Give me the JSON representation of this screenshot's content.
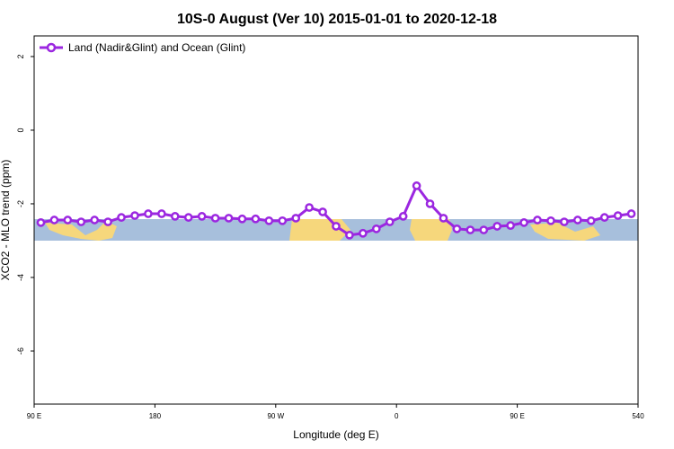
{
  "chart_data": {
    "type": "line",
    "title": "10S-0 August (Ver 10)   2015-01-01 to 2020-12-18",
    "x_label": "Longitude (deg E)",
    "y_label": "XCO2 - MLO trend (ppm)",
    "x": [
      95,
      105,
      115,
      125,
      135,
      145,
      155,
      165,
      175,
      185,
      195,
      205,
      215,
      225,
      235,
      245,
      255,
      265,
      275,
      285,
      295,
      305,
      315,
      325,
      335,
      345,
      355,
      365,
      375,
      385,
      395,
      405,
      415,
      425,
      435,
      445,
      455,
      465,
      475,
      485,
      495,
      505,
      515,
      525,
      535
    ],
    "series": [
      {
        "name": "Land (Nadir&Glint) and Ocean (Glint)",
        "color": "#9b27e0",
        "values": [
          -2.51,
          -2.44,
          -2.44,
          -2.49,
          -2.44,
          -2.49,
          -2.37,
          -2.32,
          -2.27,
          -2.27,
          -2.34,
          -2.37,
          -2.34,
          -2.39,
          -2.39,
          -2.41,
          -2.41,
          -2.46,
          -2.46,
          -2.39,
          -2.1,
          -2.22,
          -2.61,
          -2.85,
          -2.8,
          -2.68,
          -2.49,
          -2.34,
          -1.51,
          -2.0,
          -2.39,
          -2.68,
          -2.71,
          -2.71,
          -2.61,
          -2.59,
          -2.51,
          -2.44,
          -2.46,
          -2.49,
          -2.44,
          -2.46,
          -2.37,
          -2.32,
          -2.27
        ]
      }
    ],
    "xlim": [
      90,
      540
    ],
    "xticks": [
      {
        "value": 90,
        "label": "90 E"
      },
      180,
      {
        "value": 270,
        "label": "90 W"
      },
      {
        "value": 360,
        "label": "0"
      },
      {
        "value": 450,
        "label": "90 E"
      },
      540
    ],
    "ylim": [
      -7.44,
      2.56
    ],
    "yticks": [
      -6,
      -4,
      -2,
      0,
      2
    ],
    "legend": "top-left"
  }
}
